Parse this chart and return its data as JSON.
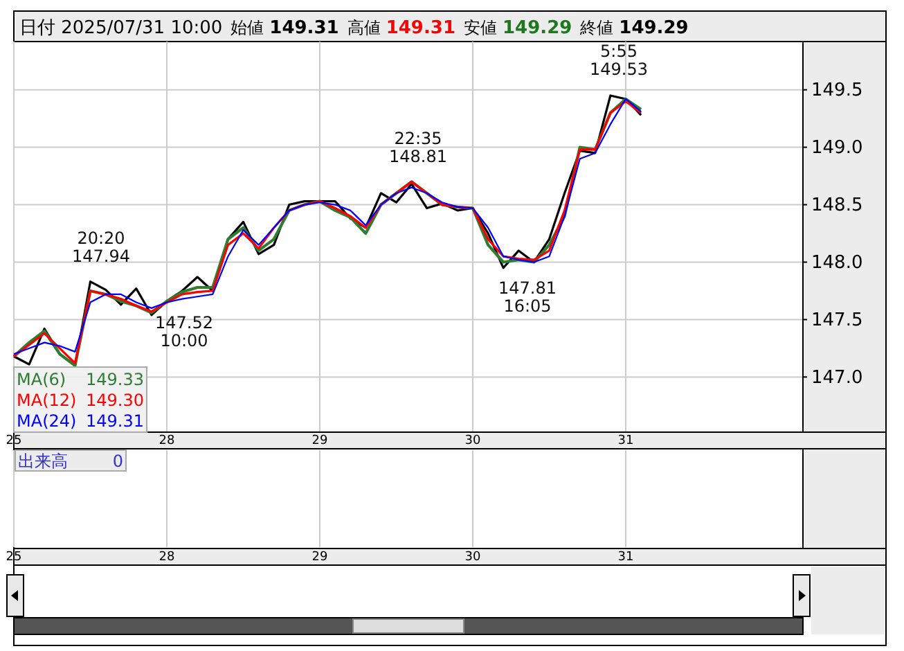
{
  "chart_data": {
    "type": "line",
    "title": "日付 2025/07/31 10:00",
    "annotations": [
      "始値 149.31",
      "高値 149.31",
      "安値 149.29",
      "終値 149.29",
      "149.33",
      "149.30",
      "149.31",
      "出来高",
      "0",
      "20:20\n147.94",
      "147.52\n10:00",
      "22:35\n148.81",
      "147.81\n16:05",
      "5:55\n149.53"
    ],
    "categories": [
      "25",
      null,
      null,
      null,
      null,
      null,
      null,
      null,
      null,
      null,
      "28",
      null,
      null,
      null,
      null,
      null,
      null,
      null,
      null,
      null,
      "29",
      null,
      null,
      null,
      null,
      null,
      null,
      null,
      null,
      null,
      "30",
      null,
      null,
      null,
      null,
      null,
      null,
      null,
      null,
      null,
      "31",
      null
    ],
    "series": [
      {
        "color": "#000000",
        "values": [
          147.18,
          147.11,
          147.42,
          147.2,
          147.1,
          147.83,
          147.76,
          147.63,
          147.77,
          147.54,
          147.66,
          147.75,
          147.87,
          147.75,
          148.2,
          148.35,
          148.07,
          148.15,
          148.5,
          148.53,
          148.53,
          148.53,
          148.38,
          148.3,
          148.6,
          148.52,
          148.68,
          148.47,
          148.51,
          148.45,
          148.47,
          148.25,
          147.95,
          148.1,
          148.0,
          148.2,
          148.6,
          148.97,
          148.95,
          149.45,
          149.42,
          149.28
        ]
      },
      {
        "name": "MA(6)",
        "color": "#2e7d32",
        "values": [
          147.18,
          147.3,
          147.4,
          147.2,
          147.1,
          147.75,
          147.72,
          147.66,
          147.62,
          147.56,
          147.66,
          147.74,
          147.78,
          147.78,
          148.2,
          148.3,
          148.1,
          148.2,
          148.45,
          148.5,
          148.53,
          148.45,
          148.39,
          148.25,
          148.5,
          148.6,
          148.7,
          148.6,
          148.5,
          148.48,
          148.47,
          148.15,
          148.0,
          148.02,
          148.0,
          148.15,
          148.4,
          149.0,
          148.98,
          149.3,
          149.42,
          149.33
        ]
      },
      {
        "name": "MA(12)",
        "color": "#ff0000",
        "values": [
          147.18,
          147.28,
          147.38,
          147.25,
          147.12,
          147.75,
          147.72,
          147.68,
          147.62,
          147.57,
          147.65,
          147.72,
          147.74,
          147.75,
          148.15,
          148.25,
          148.12,
          148.3,
          148.45,
          148.5,
          148.53,
          148.47,
          148.4,
          148.3,
          148.5,
          148.6,
          148.7,
          148.6,
          148.5,
          148.48,
          148.47,
          148.2,
          148.05,
          148.03,
          148.02,
          148.1,
          148.45,
          148.98,
          148.98,
          149.3,
          149.4,
          149.3
        ]
      },
      {
        "name": "MA(24)",
        "color": "#0000ff",
        "values": [
          147.2,
          147.25,
          147.3,
          147.27,
          147.22,
          147.65,
          147.72,
          147.72,
          147.65,
          147.6,
          147.65,
          147.68,
          147.7,
          147.72,
          148.05,
          148.28,
          148.15,
          148.3,
          148.45,
          148.5,
          148.52,
          148.5,
          148.45,
          148.32,
          148.5,
          148.6,
          148.65,
          148.6,
          148.52,
          148.48,
          148.47,
          148.3,
          148.05,
          148.02,
          148.0,
          148.05,
          148.4,
          148.9,
          148.95,
          149.2,
          149.42,
          149.31
        ]
      }
    ],
    "ylim": [
      146.52,
      149.92
    ],
    "yticks": [
      {
        "value": 147,
        "label": "147.0"
      },
      147.5,
      {
        "value": 148,
        "label": "148.0"
      },
      148.5,
      {
        "value": 149,
        "label": "149.0"
      },
      149.5
    ],
    "grid": true,
    "legend": "bottom left",
    "line_style": "solid",
    "marker": "none"
  }
}
